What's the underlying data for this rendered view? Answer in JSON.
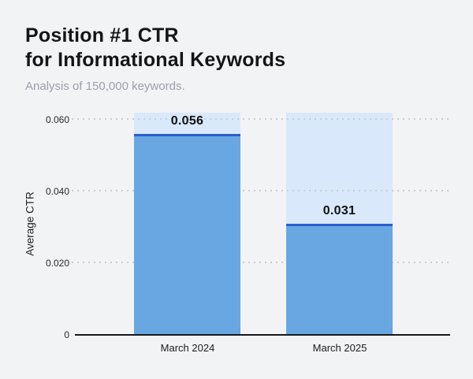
{
  "page": {
    "background": "#f2f3f5"
  },
  "header": {
    "title_line1": "Position #1 CTR",
    "title_line2": "for Informational Keywords",
    "subtitle": "Analysis of 150,000 keywords."
  },
  "chart_data": {
    "type": "bar",
    "title": "Position #1 CTR for Informational Keywords",
    "subtitle": "Analysis of 150,000 keywords.",
    "categories": [
      "March 2024",
      "March 2025"
    ],
    "values": [
      0.056,
      0.031
    ],
    "value_labels": [
      "0.056",
      "0.031"
    ],
    "xlabel": "",
    "ylabel": "Average CTR",
    "ylim": [
      0,
      0.062
    ],
    "yticks": [
      0,
      0.02,
      0.04,
      0.06
    ],
    "ytick_labels": [
      "0",
      "0.020",
      "0.040",
      "0.060"
    ],
    "grid": "horizontal-dotted",
    "legend_position": "none",
    "colors": {
      "page_bg": "#f2f3f5",
      "bar_fill": "#68a7e2",
      "bar_track": "#d9e8fb",
      "bar_top_line": "#2b5ecd",
      "gridline": "#c9ced4",
      "axis_line": "#17181b",
      "title": "#141518",
      "subtitle": "#9aa1a9",
      "tick_label": "#27292c"
    }
  }
}
